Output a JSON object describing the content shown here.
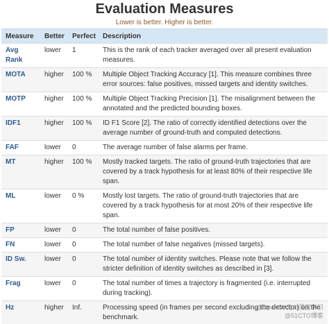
{
  "header": {
    "title": "Evaluation Measures",
    "subtitle": "Lower is better. Higher is better."
  },
  "table": {
    "columns": [
      "Measure",
      "Better",
      "Perfect",
      "Description"
    ],
    "rows": [
      [
        "Avg Rank",
        "lower",
        "1",
        "This is the rank of each tracker averaged over all present evaluation measures."
      ],
      [
        "MOTA",
        "higher",
        "100 %",
        "Multiple Object Tracking Accuracy [1]. This measure combines three error sources: false positives, missed targets and identity switches."
      ],
      [
        "MOTP",
        "higher",
        "100 %",
        "Multiple Object Tracking Precision [1]. The misalignment between the annotated and the predicted bounding boxes."
      ],
      [
        "IDF1",
        "higher",
        "100 %",
        "ID F1 Score [2]. The ratio of correctly identified detections over the average number of ground-truth and computed detections."
      ],
      [
        "FAF",
        "lower",
        "0",
        "The average number of false alarms per frame."
      ],
      [
        "MT",
        "higher",
        "100 %",
        "Mostly tracked targets. The ratio of ground-truth trajectories that are covered by a track hypothesis for at least 80% of their respective life span."
      ],
      [
        "ML",
        "lower",
        "0 %",
        "Mostly lost targets. The ratio of ground-truth trajectories that are covered by a track hypothesis for at most 20% of their respective life span."
      ],
      [
        "FP",
        "lower",
        "0",
        "The total number of false positives."
      ],
      [
        "FN",
        "lower",
        "0",
        "The total number of false negatives (missed targets)."
      ],
      [
        "ID Sw.",
        "lower",
        "0",
        "The total number of identity switches. Please note that we follow the stricter definition of identity switches as described in [3]."
      ],
      [
        "Frag",
        "lower",
        "0",
        "The total number of times a trajectory is fragmented (i.e. interrupted during tracking)."
      ],
      [
        "Hz",
        "higher",
        "Inf.",
        "Processing speed (in frames per second excluding the detector) on the benchmark."
      ]
    ]
  },
  "watermark": [
    "@OpenCV与AI深度学习",
    "@51CTO博客"
  ]
}
